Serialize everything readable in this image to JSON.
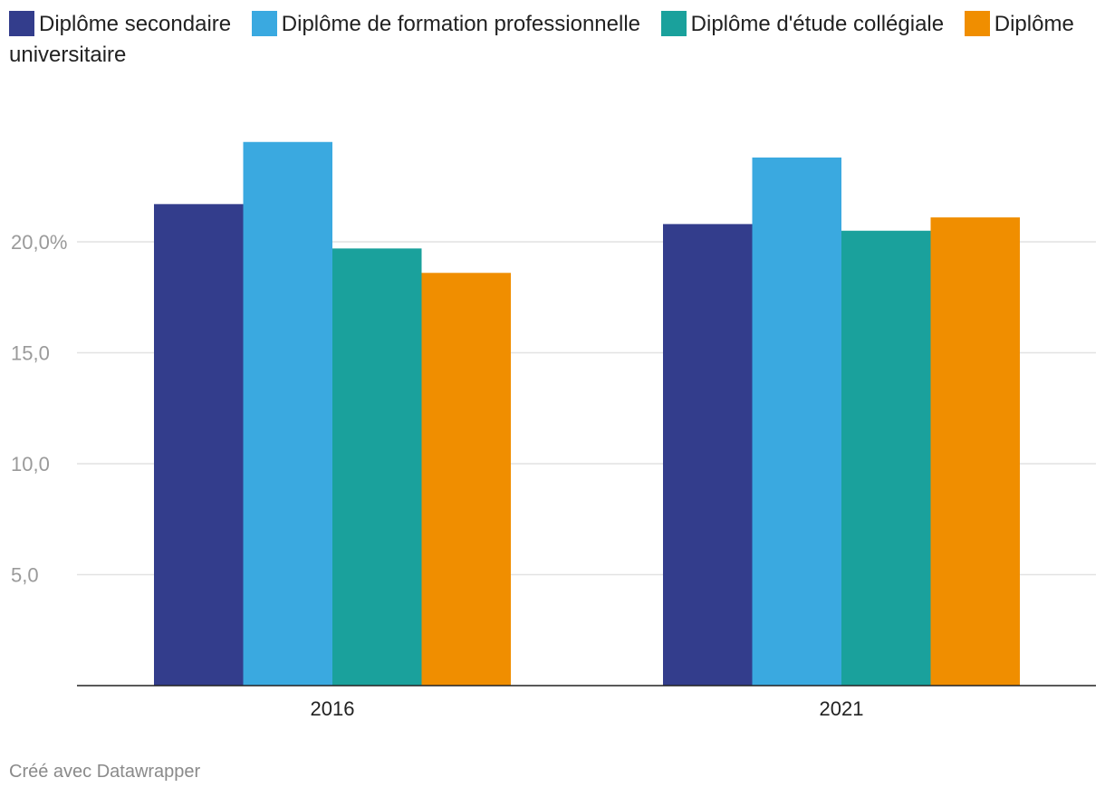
{
  "legend": {
    "items": [
      {
        "label": "Diplôme secondaire",
        "color": "#333d8c"
      },
      {
        "label": "Diplôme de formation professionnelle",
        "color": "#3aa9e0"
      },
      {
        "label": "Diplôme d'étude collégiale",
        "color": "#1aa19c"
      },
      {
        "label": "Diplôme universitaire",
        "color": "#f08e00"
      }
    ]
  },
  "footer": {
    "credit": "Créé avec Datawrapper"
  },
  "chart_data": {
    "type": "bar",
    "categories": [
      "2016",
      "2021"
    ],
    "series": [
      {
        "name": "Diplôme secondaire",
        "color": "#333d8c",
        "values": [
          21.7,
          20.8
        ]
      },
      {
        "name": "Diplôme de formation professionnelle",
        "color": "#3aa9e0",
        "values": [
          24.5,
          23.8
        ]
      },
      {
        "name": "Diplôme d'étude collégiale",
        "color": "#1aa19c",
        "values": [
          19.7,
          20.5
        ]
      },
      {
        "name": "Diplôme universitaire",
        "color": "#f08e00",
        "values": [
          18.6,
          21.1
        ]
      }
    ],
    "yticks": [
      5,
      10,
      15,
      20
    ],
    "ytick_labels": [
      "5,0",
      "10,0",
      "15,0",
      "20,0%"
    ],
    "ylim": [
      0,
      25
    ],
    "grid": true,
    "legend_position": "top-left",
    "title": "",
    "xlabel": "",
    "ylabel": ""
  }
}
